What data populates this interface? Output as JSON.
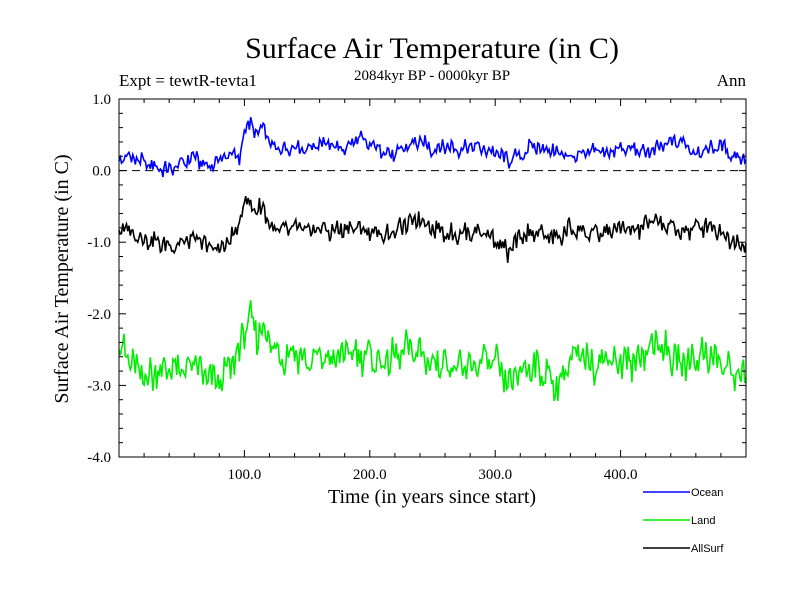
{
  "chart_data": {
    "type": "line",
    "title": "Surface Air Temperature (in C)",
    "subtitle": "2084kyr BP - 0000kyr BP",
    "experiment_label": "Expt = tewtR-tevta1",
    "season_label": "Ann",
    "xlabel": "Time (in years since start)",
    "ylabel": "Surface Air Temperature (in C)",
    "xlim": [
      0,
      500
    ],
    "ylim": [
      -4.0,
      1.0
    ],
    "x_ticks": [
      100,
      200,
      300,
      400
    ],
    "x_tick_labels": [
      "100.0",
      "200.0",
      "300.0",
      "400.0"
    ],
    "y_ticks": [
      -4,
      -3,
      -2,
      -1,
      0,
      1
    ],
    "y_tick_labels": [
      "-4.0",
      "-3.0",
      "-2.0",
      "-1.0",
      "0.0",
      "1.0"
    ],
    "zero_line": {
      "y": 0,
      "style": "dashed"
    },
    "legend_position": "bottom-right",
    "series": [
      {
        "name": "Ocean",
        "color": "#0000ff",
        "points": [
          [
            0,
            0.15
          ],
          [
            10,
            0.2
          ],
          [
            20,
            0.1
          ],
          [
            30,
            0.05
          ],
          [
            40,
            0.0
          ],
          [
            50,
            0.1
          ],
          [
            60,
            0.2
          ],
          [
            70,
            0.05
          ],
          [
            80,
            0.15
          ],
          [
            90,
            0.25
          ],
          [
            96,
            0.15
          ],
          [
            100,
            0.55
          ],
          [
            105,
            0.7
          ],
          [
            110,
            0.45
          ],
          [
            115,
            0.65
          ],
          [
            120,
            0.35
          ],
          [
            130,
            0.3
          ],
          [
            140,
            0.35
          ],
          [
            150,
            0.3
          ],
          [
            160,
            0.4
          ],
          [
            170,
            0.35
          ],
          [
            180,
            0.3
          ],
          [
            190,
            0.45
          ],
          [
            200,
            0.35
          ],
          [
            210,
            0.3
          ],
          [
            220,
            0.2
          ],
          [
            230,
            0.35
          ],
          [
            240,
            0.4
          ],
          [
            250,
            0.3
          ],
          [
            260,
            0.35
          ],
          [
            270,
            0.3
          ],
          [
            280,
            0.35
          ],
          [
            290,
            0.3
          ],
          [
            300,
            0.25
          ],
          [
            310,
            0.15
          ],
          [
            320,
            0.2
          ],
          [
            330,
            0.35
          ],
          [
            340,
            0.3
          ],
          [
            350,
            0.25
          ],
          [
            360,
            0.2
          ],
          [
            370,
            0.2
          ],
          [
            380,
            0.3
          ],
          [
            390,
            0.25
          ],
          [
            400,
            0.3
          ],
          [
            410,
            0.3
          ],
          [
            420,
            0.25
          ],
          [
            430,
            0.3
          ],
          [
            440,
            0.4
          ],
          [
            450,
            0.4
          ],
          [
            460,
            0.25
          ],
          [
            470,
            0.3
          ],
          [
            480,
            0.35
          ],
          [
            490,
            0.2
          ],
          [
            500,
            0.2
          ]
        ]
      },
      {
        "name": "Land",
        "color": "#00ee00",
        "points": [
          [
            0,
            -2.4
          ],
          [
            10,
            -2.7
          ],
          [
            20,
            -2.9
          ],
          [
            30,
            -2.8
          ],
          [
            40,
            -2.75
          ],
          [
            50,
            -2.8
          ],
          [
            60,
            -2.7
          ],
          [
            70,
            -2.9
          ],
          [
            80,
            -2.95
          ],
          [
            90,
            -2.7
          ],
          [
            96,
            -2.5
          ],
          [
            100,
            -2.2
          ],
          [
            105,
            -2.1
          ],
          [
            110,
            -2.3
          ],
          [
            115,
            -2.15
          ],
          [
            120,
            -2.4
          ],
          [
            130,
            -2.6
          ],
          [
            140,
            -2.5
          ],
          [
            150,
            -2.7
          ],
          [
            160,
            -2.6
          ],
          [
            170,
            -2.65
          ],
          [
            180,
            -2.55
          ],
          [
            190,
            -2.55
          ],
          [
            200,
            -2.6
          ],
          [
            210,
            -2.7
          ],
          [
            220,
            -2.6
          ],
          [
            230,
            -2.5
          ],
          [
            240,
            -2.55
          ],
          [
            250,
            -2.7
          ],
          [
            260,
            -2.65
          ],
          [
            270,
            -2.8
          ],
          [
            280,
            -2.75
          ],
          [
            290,
            -2.65
          ],
          [
            300,
            -2.7
          ],
          [
            310,
            -3.0
          ],
          [
            320,
            -2.8
          ],
          [
            330,
            -2.7
          ],
          [
            340,
            -2.85
          ],
          [
            350,
            -3.0
          ],
          [
            360,
            -2.65
          ],
          [
            370,
            -2.6
          ],
          [
            380,
            -2.7
          ],
          [
            390,
            -2.6
          ],
          [
            400,
            -2.65
          ],
          [
            410,
            -2.7
          ],
          [
            420,
            -2.5
          ],
          [
            430,
            -2.4
          ],
          [
            440,
            -2.6
          ],
          [
            450,
            -2.7
          ],
          [
            460,
            -2.6
          ],
          [
            470,
            -2.55
          ],
          [
            480,
            -2.7
          ],
          [
            490,
            -2.85
          ],
          [
            500,
            -2.8
          ]
        ]
      },
      {
        "name": "AllSurf",
        "color": "#000000",
        "points": [
          [
            0,
            -0.8
          ],
          [
            10,
            -0.85
          ],
          [
            20,
            -0.95
          ],
          [
            30,
            -1.0
          ],
          [
            40,
            -1.05
          ],
          [
            50,
            -1.0
          ],
          [
            60,
            -0.95
          ],
          [
            70,
            -1.05
          ],
          [
            80,
            -1.1
          ],
          [
            90,
            -0.95
          ],
          [
            96,
            -0.75
          ],
          [
            100,
            -0.4
          ],
          [
            105,
            -0.45
          ],
          [
            110,
            -0.6
          ],
          [
            115,
            -0.45
          ],
          [
            120,
            -0.8
          ],
          [
            130,
            -0.85
          ],
          [
            140,
            -0.8
          ],
          [
            150,
            -0.85
          ],
          [
            160,
            -0.8
          ],
          [
            170,
            -0.85
          ],
          [
            180,
            -0.8
          ],
          [
            190,
            -0.8
          ],
          [
            200,
            -0.85
          ],
          [
            210,
            -0.9
          ],
          [
            220,
            -0.85
          ],
          [
            230,
            -0.75
          ],
          [
            240,
            -0.65
          ],
          [
            250,
            -0.8
          ],
          [
            260,
            -0.85
          ],
          [
            270,
            -0.9
          ],
          [
            280,
            -0.85
          ],
          [
            290,
            -0.85
          ],
          [
            300,
            -0.95
          ],
          [
            310,
            -1.15
          ],
          [
            320,
            -0.95
          ],
          [
            330,
            -0.85
          ],
          [
            340,
            -0.9
          ],
          [
            350,
            -0.95
          ],
          [
            360,
            -0.8
          ],
          [
            370,
            -0.85
          ],
          [
            380,
            -0.9
          ],
          [
            390,
            -0.85
          ],
          [
            400,
            -0.8
          ],
          [
            410,
            -0.85
          ],
          [
            420,
            -0.75
          ],
          [
            430,
            -0.7
          ],
          [
            440,
            -0.8
          ],
          [
            450,
            -0.85
          ],
          [
            460,
            -0.8
          ],
          [
            470,
            -0.75
          ],
          [
            480,
            -0.85
          ],
          [
            490,
            -1.0
          ],
          [
            500,
            -1.0
          ]
        ]
      }
    ]
  }
}
